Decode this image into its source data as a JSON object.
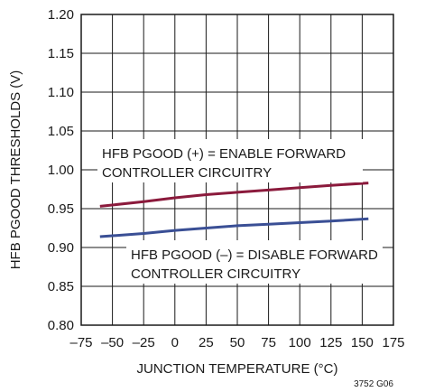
{
  "chart_data": {
    "type": "line",
    "xlabel": "JUNCTION TEMPERATURE (°C)",
    "ylabel": "HFB PGOOD THRESHOLDS (V)",
    "xlim": [
      -75,
      175
    ],
    "ylim": [
      0.8,
      1.2
    ],
    "x_ticks": [
      "–75",
      "–50",
      "–25",
      "0",
      "25",
      "50",
      "75",
      "100",
      "125",
      "150",
      "175"
    ],
    "y_ticks": [
      "0.80",
      "0.85",
      "0.90",
      "0.95",
      "1.00",
      "1.05",
      "1.10",
      "1.15",
      "1.20"
    ],
    "grid": true,
    "series": [
      {
        "color": "#8b1a3c",
        "x": [
          -60,
          -25,
          0,
          25,
          50,
          75,
          100,
          125,
          155
        ],
        "y": [
          0.953,
          0.959,
          0.964,
          0.968,
          0.971,
          0.974,
          0.977,
          0.98,
          0.983
        ]
      },
      {
        "color": "#3a4f95",
        "x": [
          -60,
          -25,
          0,
          25,
          50,
          75,
          100,
          125,
          155
        ],
        "y": [
          0.914,
          0.918,
          0.922,
          0.925,
          0.928,
          0.93,
          0.932,
          0.934,
          0.937
        ]
      }
    ],
    "annotations": [
      {
        "line1": "HFB PGOOD (+) = ENABLE FORWARD",
        "line2": "CONTROLLER CIRCUITRY"
      },
      {
        "line1": "HFB PGOOD (–) = DISABLE FORWARD",
        "line2": "CONTROLLER CIRCUITRY"
      }
    ],
    "figure_id": "3752 G06"
  }
}
